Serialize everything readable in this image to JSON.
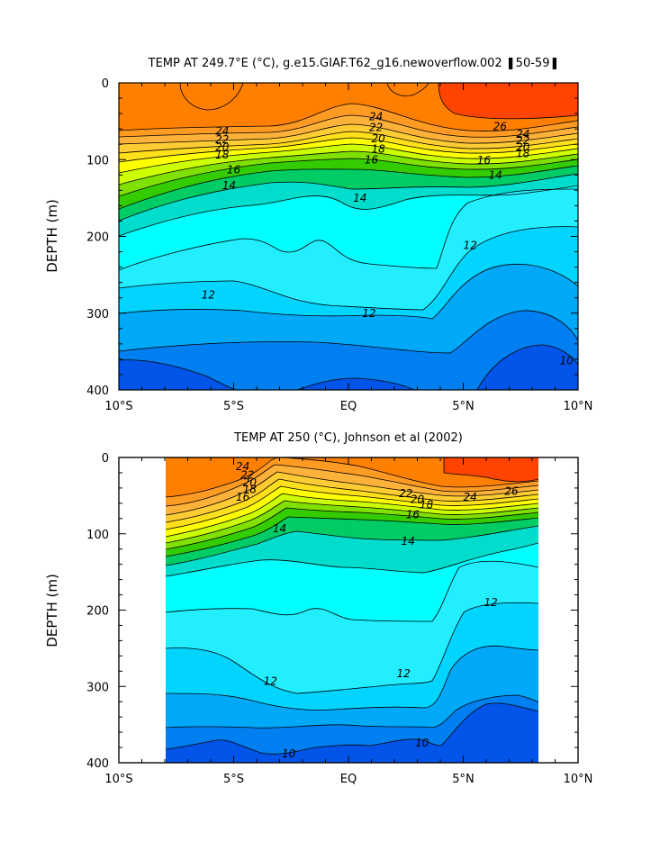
{
  "chart_data": [
    {
      "type": "heatmap",
      "title": "TEMP AT 249.7°E (°C), g.e15.GIAF.T62_g16.newoverflow.002 ❚50-59❚",
      "ylabel": "DEPTH (m)",
      "xlim": [
        -10,
        10
      ],
      "ylim": [
        400,
        0
      ],
      "x_ticks": [
        "10°S",
        "5°S",
        "EQ",
        "5°N",
        "10°N"
      ],
      "y_ticks": [
        "0",
        "100",
        "200",
        "300",
        "400"
      ],
      "data_extent_x": [
        -10,
        10
      ],
      "contour_levels": [
        10,
        11,
        12,
        13,
        14,
        15,
        16,
        17,
        18,
        19,
        20,
        21,
        22,
        23,
        24,
        25,
        26
      ],
      "contour_labels": [
        {
          "text": "24",
          "x": -5.5,
          "y": 63
        },
        {
          "text": "22",
          "x": -5.5,
          "y": 74
        },
        {
          "text": "20",
          "x": -5.5,
          "y": 84
        },
        {
          "text": "18",
          "x": -5.5,
          "y": 94
        },
        {
          "text": "16",
          "x": -5.0,
          "y": 113
        },
        {
          "text": "14",
          "x": -5.2,
          "y": 134
        },
        {
          "text": "24",
          "x": 1.2,
          "y": 44
        },
        {
          "text": "22",
          "x": 1.2,
          "y": 58
        },
        {
          "text": "20",
          "x": 1.3,
          "y": 73
        },
        {
          "text": "18",
          "x": 1.3,
          "y": 86
        },
        {
          "text": "16",
          "x": 1.0,
          "y": 100
        },
        {
          "text": "14",
          "x": 0.5,
          "y": 150
        },
        {
          "text": "26",
          "x": 6.6,
          "y": 57
        },
        {
          "text": "24",
          "x": 7.6,
          "y": 67
        },
        {
          "text": "22",
          "x": 7.6,
          "y": 75
        },
        {
          "text": "20",
          "x": 7.6,
          "y": 84
        },
        {
          "text": "18",
          "x": 7.6,
          "y": 92
        },
        {
          "text": "16",
          "x": 5.9,
          "y": 101
        },
        {
          "text": "14",
          "x": 6.4,
          "y": 120
        },
        {
          "text": "12",
          "x": 5.3,
          "y": 212
        },
        {
          "text": "12",
          "x": -6.1,
          "y": 276
        },
        {
          "text": "12",
          "x": 0.9,
          "y": 300
        },
        {
          "text": "10",
          "x": 9.5,
          "y": 362
        }
      ]
    },
    {
      "type": "heatmap",
      "title": "TEMP AT 250 (°C), Johnson et al (2002)",
      "ylabel": "DEPTH (m)",
      "xlim": [
        -10,
        10
      ],
      "ylim": [
        400,
        0
      ],
      "x_ticks": [
        "10°S",
        "5°S",
        "EQ",
        "5°N",
        "10°N"
      ],
      "y_ticks": [
        "0",
        "100",
        "200",
        "300",
        "400"
      ],
      "data_extent_x": [
        -8,
        8.3
      ],
      "contour_levels": [
        10,
        11,
        12,
        13,
        14,
        15,
        16,
        17,
        18,
        19,
        20,
        21,
        22,
        23,
        24,
        25,
        26
      ],
      "contour_labels": [
        {
          "text": "24",
          "x": -4.6,
          "y": 12
        },
        {
          "text": "22",
          "x": -4.4,
          "y": 23
        },
        {
          "text": "20",
          "x": -4.3,
          "y": 33
        },
        {
          "text": "18",
          "x": -4.3,
          "y": 42
        },
        {
          "text": "16",
          "x": -4.6,
          "y": 52
        },
        {
          "text": "14",
          "x": -3.0,
          "y": 93
        },
        {
          "text": "22",
          "x": 2.5,
          "y": 47
        },
        {
          "text": "20",
          "x": 3.0,
          "y": 55
        },
        {
          "text": "18",
          "x": 3.4,
          "y": 62
        },
        {
          "text": "16",
          "x": 2.8,
          "y": 75
        },
        {
          "text": "14",
          "x": 2.6,
          "y": 110
        },
        {
          "text": "24",
          "x": 5.3,
          "y": 52
        },
        {
          "text": "26",
          "x": 7.1,
          "y": 44
        },
        {
          "text": "12",
          "x": 6.2,
          "y": 190
        },
        {
          "text": "12",
          "x": -3.4,
          "y": 293
        },
        {
          "text": "12",
          "x": 2.4,
          "y": 283
        },
        {
          "text": "10",
          "x": -2.6,
          "y": 388
        },
        {
          "text": "10",
          "x": 3.2,
          "y": 374
        }
      ]
    }
  ],
  "colors": {
    "t26_plus": "#ff4400",
    "t25_26": "#ff7f00",
    "t24_25": "#ff9a22",
    "t23_24": "#ffb23a",
    "t22_23": "#ffcc33",
    "t21_22": "#ffe01a",
    "t20_21": "#ffff00",
    "t19_20": "#ccff00",
    "t18_19": "#80e000",
    "t17_18": "#33cc00",
    "t16_17": "#00cc66",
    "t15_16": "#00ddcc",
    "t14_15": "#00ffff",
    "t13_14": "#22eeff",
    "t12_13": "#00d4ff",
    "t11_12": "#00a8f8",
    "t10_11": "#0080f0",
    "t_below_10": "#0055e8"
  }
}
